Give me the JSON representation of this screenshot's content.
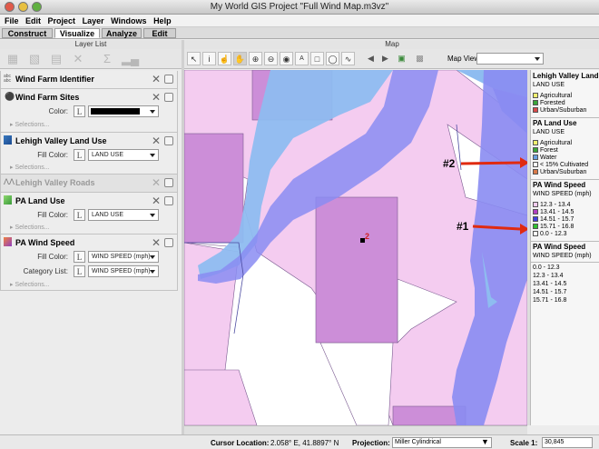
{
  "window": {
    "title": "My World GIS Project \"Full Wind Map.m3vz\""
  },
  "menu": [
    "File",
    "Edit",
    "Project",
    "Layer",
    "Windows",
    "Help"
  ],
  "tabs": [
    {
      "label": "Construct",
      "active": false
    },
    {
      "label": "Visualize",
      "active": true
    },
    {
      "label": "Analyze",
      "active": false
    },
    {
      "label": "Edit",
      "active": false
    }
  ],
  "layer_list": {
    "title": "Layer List",
    "toolbar_icons": [
      "table-icon",
      "grid-icon",
      "list-icon",
      "delete-icon",
      "sum-icon",
      "chart-icon"
    ],
    "layers": [
      {
        "name": "Wind Farm Identifier"
      },
      {
        "name": "Wind Farm Sites",
        "color_label": "Color:",
        "color_value": "#000000",
        "selections": "Selections..."
      },
      {
        "name": "Lehigh Valley Land Use",
        "fill_label": "Fill Color:",
        "fill_value": "LAND USE",
        "selections": "Selections..."
      },
      {
        "name": "Lehigh Valley Roads"
      },
      {
        "name": "PA Land Use",
        "fill_label": "Fill Color:",
        "fill_value": "LAND USE",
        "selections": "Selections..."
      },
      {
        "name": "PA Wind Speed",
        "fill_label": "Fill Color:",
        "fill_value": "WIND SPEED (mph)",
        "category_label": "Category List:",
        "category_value": "WIND SPEED (mph)",
        "selections": "Selections..."
      }
    ]
  },
  "map": {
    "title": "Map",
    "view_label": "Map View:",
    "view_value": "",
    "annotations": [
      "#2",
      "#1"
    ],
    "site_marker": "2",
    "colors": {
      "ws_low": "#f4ccf0",
      "ws_mid": "#cc8ed8",
      "water": "#8ebcf0",
      "ws_high": "#8a8cf2",
      "arrow": "#e02a10"
    }
  },
  "legend": {
    "sections": [
      {
        "title": "Lehigh Valley Land Use",
        "subtitle": "LAND USE",
        "items": [
          {
            "label": "Agricultural",
            "color": "#f0f070"
          },
          {
            "label": "Forested",
            "color": "#3aa53a"
          },
          {
            "label": "Urban/Suburban",
            "color": "#d84a4a"
          }
        ]
      },
      {
        "title": "PA Land Use",
        "subtitle": "LAND USE",
        "items": [
          {
            "label": "Agricultural",
            "color": "#f0f070"
          },
          {
            "label": "Forest",
            "color": "#3aa53a"
          },
          {
            "label": "Water",
            "color": "#6aa0e0"
          },
          {
            "label": "< 15% Cultivated",
            "color": "#ffffff"
          },
          {
            "label": "Urban/Suburban",
            "color": "#d87a4a"
          }
        ]
      },
      {
        "title": "PA Wind Speed",
        "subtitle": "WIND SPEED (mph)",
        "items": [
          {
            "label": "12.3 - 13.4",
            "color": "#f4ccf0"
          },
          {
            "label": "13.41 - 14.5",
            "color": "#b040c0"
          },
          {
            "label": "14.51 - 15.7",
            "color": "#4040e0"
          },
          {
            "label": "15.71 - 16.8",
            "color": "#30c030"
          },
          {
            "label": "0.0 - 12.3",
            "color": "#ffffff"
          }
        ]
      },
      {
        "title": "PA Wind Speed",
        "subtitle": "WIND SPEED (mph)",
        "items": [
          {
            "label": "0.0 - 12.3"
          },
          {
            "label": "12.3 - 13.4"
          },
          {
            "label": "13.41 - 14.5"
          },
          {
            "label": "14.51 - 15.7"
          },
          {
            "label": "15.71 - 16.8"
          }
        ]
      }
    ]
  },
  "status": {
    "cursor_label": "Cursor Location:",
    "cursor_value": "2.058° E, 41.8897° N",
    "projection_label": "Projection:",
    "projection_value": "Miller Cylindrical",
    "scale_label": "Scale 1:",
    "scale_value": "30,845"
  }
}
